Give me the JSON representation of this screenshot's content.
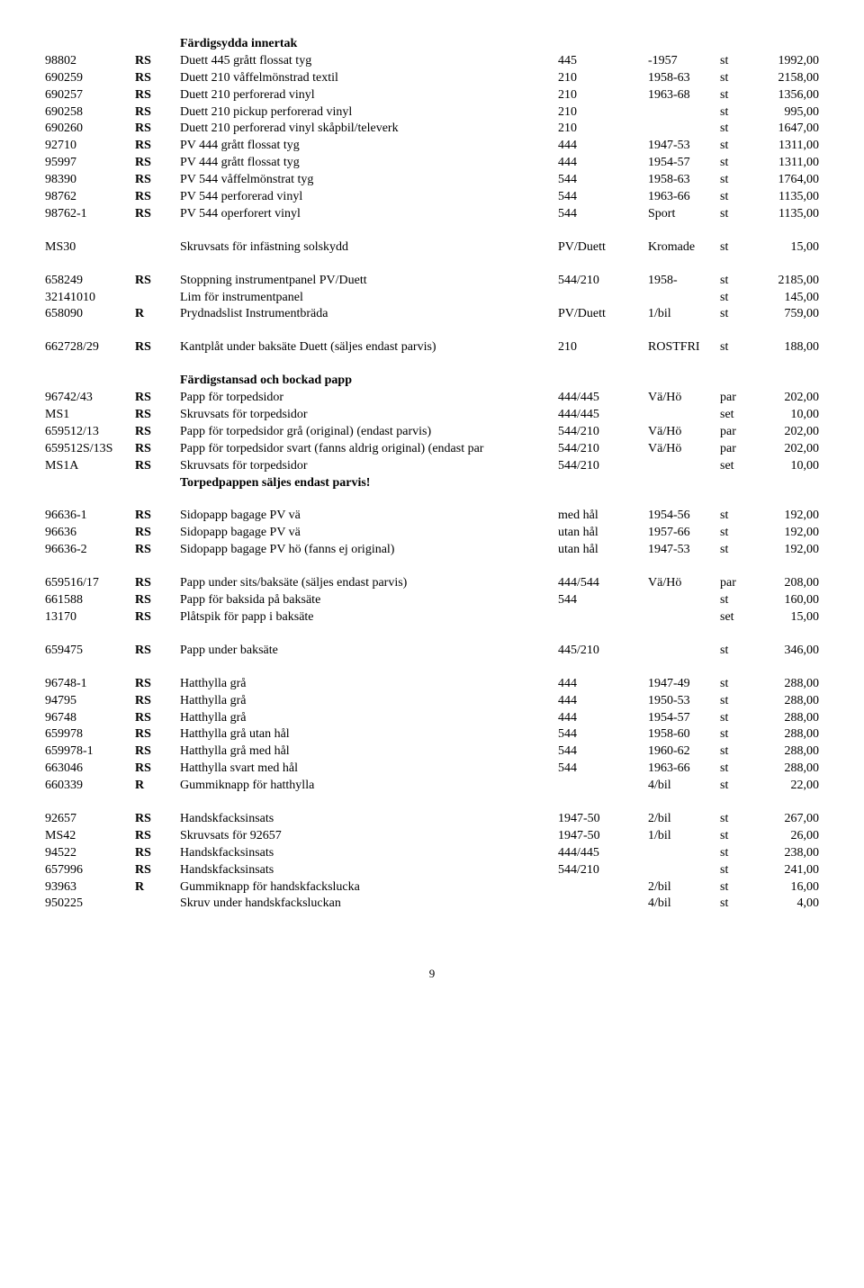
{
  "sections": [
    {
      "header": "Färdigsydda innertak",
      "rows": [
        [
          "98802",
          "RS",
          "Duett 445 grått flossat tyg",
          "445",
          "-1957",
          "st",
          "1992,00"
        ],
        [
          "690259",
          "RS",
          "Duett 210 våffelmönstrad textil",
          "210",
          "1958-63",
          "st",
          "2158,00"
        ],
        [
          "690257",
          "RS",
          "Duett 210 perforerad vinyl",
          "210",
          "1963-68",
          "st",
          "1356,00"
        ],
        [
          "690258",
          "RS",
          "Duett 210 pickup perforerad vinyl",
          "210",
          "",
          "st",
          "995,00"
        ],
        [
          "690260",
          "RS",
          "Duett 210 perforerad vinyl skåpbil/televerk",
          "210",
          "",
          "st",
          "1647,00"
        ],
        [
          "92710",
          "RS",
          "PV 444 grått flossat tyg",
          "444",
          "1947-53",
          "st",
          "1311,00"
        ],
        [
          "95997",
          "RS",
          "PV 444 grått flossat tyg",
          "444",
          "1954-57",
          "st",
          "1311,00"
        ],
        [
          "98390",
          "RS",
          "PV 544 våffelmönstrat tyg",
          "544",
          "1958-63",
          "st",
          "1764,00"
        ],
        [
          "98762",
          "RS",
          "PV 544 perforerad vinyl",
          "544",
          "1963-66",
          "st",
          "1135,00"
        ],
        [
          "98762-1",
          "RS",
          "PV 544 operforert vinyl",
          "544",
          "Sport",
          "st",
          "1135,00"
        ]
      ]
    },
    {
      "rows": [
        [
          "MS30",
          "",
          "Skruvsats för infästning solskydd",
          "PV/Duett",
          "Kromade",
          "st",
          "15,00"
        ]
      ]
    },
    {
      "rows": [
        [
          "658249",
          "RS",
          "Stoppning instrumentpanel PV/Duett",
          "544/210",
          "1958-",
          "st",
          "2185,00"
        ],
        [
          "32141010",
          "",
          "Lim för instrumentpanel",
          "",
          "",
          "st",
          "145,00"
        ],
        [
          "658090",
          "R",
          "Prydnadslist Instrumentbräda",
          "PV/Duett",
          "1/bil",
          "st",
          "759,00"
        ]
      ]
    },
    {
      "rows": [
        [
          "662728/29",
          "RS",
          "Kantplåt under baksäte Duett (säljes endast parvis)",
          "210",
          "ROSTFRI",
          "st",
          "188,00"
        ]
      ]
    },
    {
      "header": "Färdigstansad och bockad papp",
      "rows": [
        [
          "96742/43",
          "RS",
          "Papp för torpedsidor",
          "444/445",
          "Vä/Hö",
          "par",
          "202,00"
        ],
        [
          "MS1",
          "RS",
          "Skruvsats för torpedsidor",
          "444/445",
          "",
          "set",
          "10,00"
        ],
        [
          "659512/13",
          "RS",
          "Papp för torpedsidor grå (original) (endast parvis)",
          "544/210",
          "Vä/Hö",
          "par",
          "202,00"
        ],
        [
          "659512S/13S",
          "RS",
          "Papp för torpedsidor svart (fanns aldrig original) (endast par",
          "544/210",
          "Vä/Hö",
          "par",
          "202,00"
        ],
        [
          "MS1A",
          "RS",
          "Skruvsats för torpedsidor",
          "544/210",
          "",
          "set",
          "10,00"
        ]
      ],
      "footer": "Torpedpappen säljes endast parvis!"
    },
    {
      "rows": [
        [
          "96636-1",
          "RS",
          "Sidopapp bagage PV vä",
          "med hål",
          "1954-56",
          "st",
          "192,00"
        ],
        [
          "96636",
          "RS",
          "Sidopapp bagage PV vä",
          "utan hål",
          "1957-66",
          "st",
          "192,00"
        ],
        [
          "96636-2",
          "RS",
          "Sidopapp bagage PV hö (fanns ej original)",
          "utan hål",
          "1947-53",
          "st",
          "192,00"
        ]
      ]
    },
    {
      "rows": [
        [
          "659516/17",
          "RS",
          "Papp under sits/baksäte (säljes endast parvis)",
          "444/544",
          "Vä/Hö",
          "par",
          "208,00"
        ],
        [
          "661588",
          "RS",
          "Papp för baksida på baksäte",
          "544",
          "",
          "st",
          "160,00"
        ],
        [
          "13170",
          "RS",
          "Plåtspik för papp i baksäte",
          "",
          "",
          "set",
          "15,00"
        ]
      ]
    },
    {
      "rows": [
        [
          "659475",
          "RS",
          "Papp under baksäte",
          "445/210",
          "",
          "st",
          "346,00"
        ]
      ]
    },
    {
      "rows": [
        [
          "96748-1",
          "RS",
          "Hatthylla grå",
          "444",
          "1947-49",
          "st",
          "288,00"
        ],
        [
          "94795",
          "RS",
          "Hatthylla grå",
          "444",
          "1950-53",
          "st",
          "288,00"
        ],
        [
          "96748",
          "RS",
          "Hatthylla grå",
          "444",
          "1954-57",
          "st",
          "288,00"
        ],
        [
          "659978",
          "RS",
          "Hatthylla grå utan hål",
          "544",
          "1958-60",
          "st",
          "288,00"
        ],
        [
          "659978-1",
          "RS",
          "Hatthylla grå med hål",
          "544",
          "1960-62",
          "st",
          "288,00"
        ],
        [
          "663046",
          "RS",
          "Hatthylla svart med hål",
          "544",
          "1963-66",
          "st",
          "288,00"
        ],
        [
          "660339",
          "R",
          "Gummiknapp för hatthylla",
          "",
          "4/bil",
          "st",
          "22,00"
        ]
      ]
    },
    {
      "rows": [
        [
          "92657",
          "RS",
          "Handskfacksinsats",
          "1947-50",
          "2/bil",
          "st",
          "267,00"
        ],
        [
          "MS42",
          "RS",
          "Skruvsats för 92657",
          "1947-50",
          "1/bil",
          "st",
          "26,00"
        ],
        [
          "94522",
          "RS",
          "Handskfacksinsats",
          "444/445",
          "",
          "st",
          "238,00"
        ],
        [
          "657996",
          "RS",
          "Handskfacksinsats",
          "544/210",
          "",
          "st",
          "241,00"
        ],
        [
          "93963",
          "R",
          "Gummiknapp för handskfackslucka",
          "",
          "2/bil",
          "st",
          "16,00"
        ],
        [
          "950225",
          "",
          "Skruv under handskfacksluckan",
          "",
          "4/bil",
          "st",
          "4,00"
        ]
      ]
    }
  ],
  "pagenum": "9"
}
